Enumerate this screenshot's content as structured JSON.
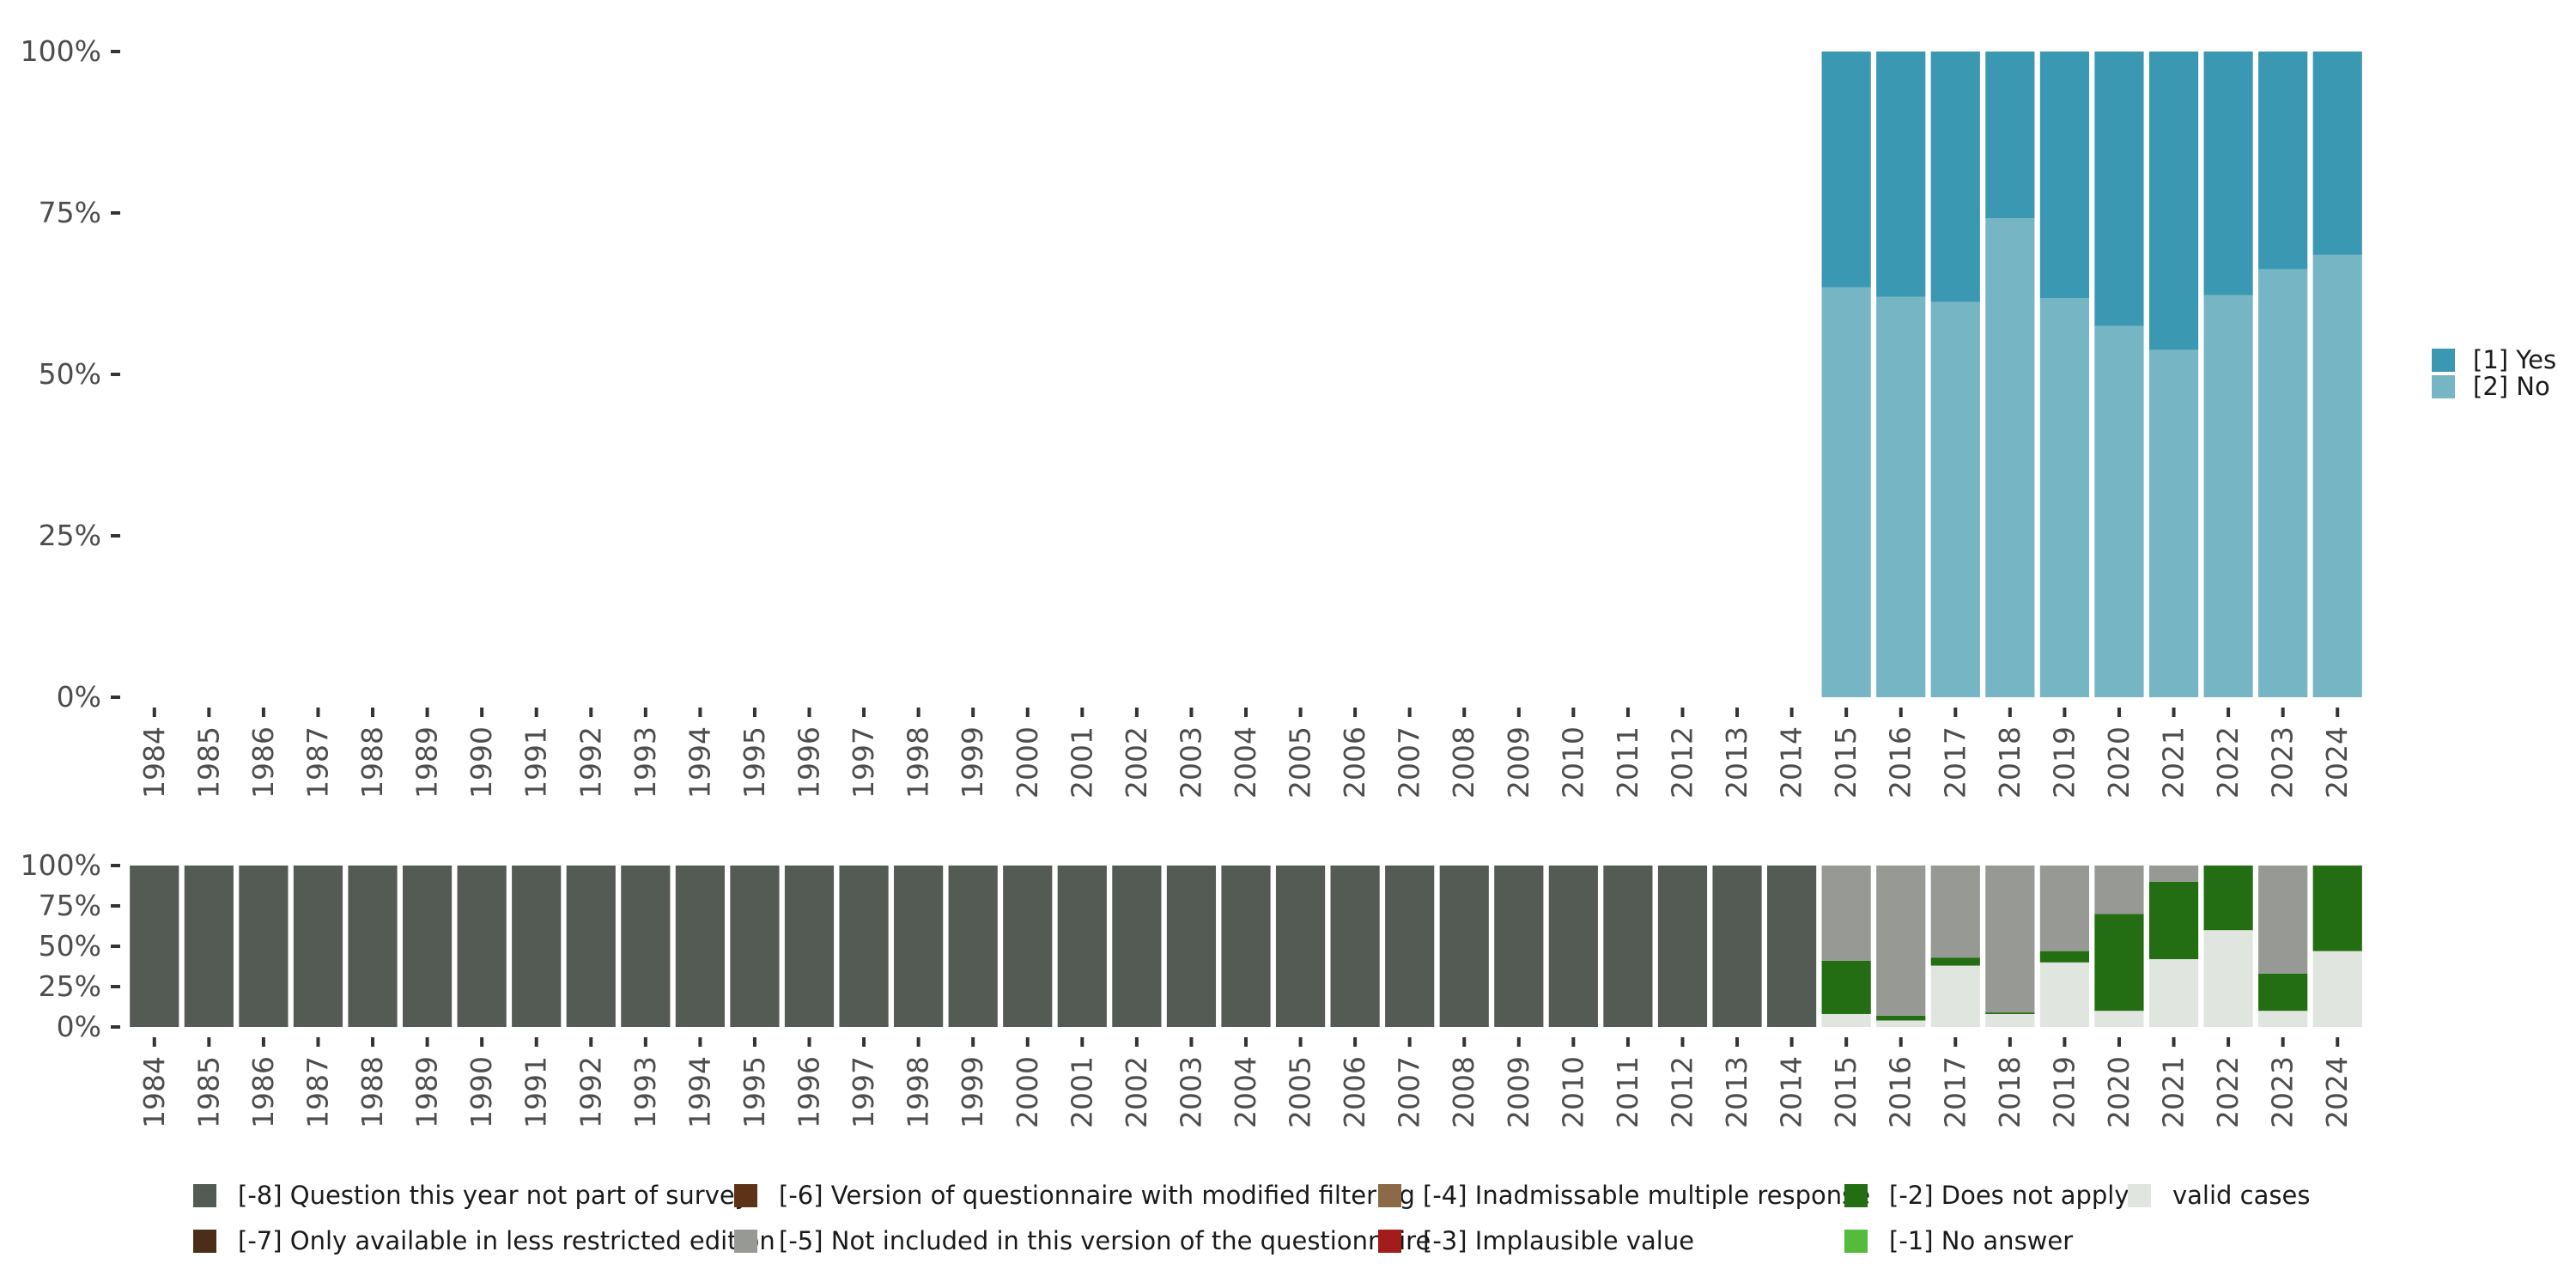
{
  "chart_data": [
    {
      "type": "bar",
      "stacked": true,
      "normalized": true,
      "categories": [
        "1984",
        "1985",
        "1986",
        "1987",
        "1988",
        "1989",
        "1990",
        "1991",
        "1992",
        "1993",
        "1994",
        "1995",
        "1996",
        "1997",
        "1998",
        "1999",
        "2000",
        "2001",
        "2002",
        "2003",
        "2004",
        "2005",
        "2006",
        "2007",
        "2008",
        "2009",
        "2010",
        "2011",
        "2012",
        "2013",
        "2014",
        "2015",
        "2016",
        "2017",
        "2018",
        "2019",
        "2020",
        "2021",
        "2022",
        "2023",
        "2024"
      ],
      "ylim": [
        0,
        100
      ],
      "y_ticks": [
        "0%",
        "25%",
        "50%",
        "75%",
        "100%"
      ],
      "legend_position": "right",
      "series": [
        {
          "name": "[2] No",
          "color": "#76b5c4",
          "values": [
            null,
            null,
            null,
            null,
            null,
            null,
            null,
            null,
            null,
            null,
            null,
            null,
            null,
            null,
            null,
            null,
            null,
            null,
            null,
            null,
            null,
            null,
            null,
            null,
            null,
            null,
            null,
            null,
            null,
            null,
            null,
            63.5,
            62,
            61.2,
            74.2,
            61.8,
            57.5,
            53.8,
            62.3,
            66.3,
            68.5
          ]
        },
        {
          "name": "[1] Yes",
          "color": "#3b98b2",
          "values": [
            null,
            null,
            null,
            null,
            null,
            null,
            null,
            null,
            null,
            null,
            null,
            null,
            null,
            null,
            null,
            null,
            null,
            null,
            null,
            null,
            null,
            null,
            null,
            null,
            null,
            null,
            null,
            null,
            null,
            null,
            null,
            36.5,
            38,
            38.8,
            25.8,
            38.2,
            42.5,
            46.2,
            37.7,
            33.7,
            31.5
          ]
        }
      ]
    },
    {
      "type": "bar",
      "stacked": true,
      "normalized": true,
      "categories": [
        "1984",
        "1985",
        "1986",
        "1987",
        "1988",
        "1989",
        "1990",
        "1991",
        "1992",
        "1993",
        "1994",
        "1995",
        "1996",
        "1997",
        "1998",
        "1999",
        "2000",
        "2001",
        "2002",
        "2003",
        "2004",
        "2005",
        "2006",
        "2007",
        "2008",
        "2009",
        "2010",
        "2011",
        "2012",
        "2013",
        "2014",
        "2015",
        "2016",
        "2017",
        "2018",
        "2019",
        "2020",
        "2021",
        "2022",
        "2023",
        "2024"
      ],
      "ylim": [
        0,
        100
      ],
      "y_ticks": [
        "0%",
        "25%",
        "50%",
        "75%",
        "100%"
      ],
      "legend_position": "bottom",
      "series": [
        {
          "name": "valid cases",
          "color": "#e1e5df",
          "values": [
            0,
            0,
            0,
            0,
            0,
            0,
            0,
            0,
            0,
            0,
            0,
            0,
            0,
            0,
            0,
            0,
            0,
            0,
            0,
            0,
            0,
            0,
            0,
            0,
            0,
            0,
            0,
            0,
            0,
            0,
            0,
            8,
            4,
            38,
            8,
            40,
            10,
            42,
            60,
            10,
            47
          ]
        },
        {
          "name": "[-1] No answer",
          "color": "#54bb3c",
          "values": [
            0,
            0,
            0,
            0,
            0,
            0,
            0,
            0,
            0,
            0,
            0,
            0,
            0,
            0,
            0,
            0,
            0,
            0,
            0,
            0,
            0,
            0,
            0,
            0,
            0,
            0,
            0,
            0,
            0,
            0,
            0,
            0,
            0,
            0,
            0,
            0,
            0,
            0,
            0,
            0,
            0
          ]
        },
        {
          "name": "[-2] Does not apply",
          "color": "#236d12",
          "values": [
            0,
            0,
            0,
            0,
            0,
            0,
            0,
            0,
            0,
            0,
            0,
            0,
            0,
            0,
            0,
            0,
            0,
            0,
            0,
            0,
            0,
            0,
            0,
            0,
            0,
            0,
            0,
            0,
            0,
            0,
            0,
            33,
            3,
            5,
            1,
            7,
            60,
            48,
            40,
            23,
            53
          ]
        },
        {
          "name": "[-3] Implausible value",
          "color": "#a31c1c",
          "values": [
            0,
            0,
            0,
            0,
            0,
            0,
            0,
            0,
            0,
            0,
            0,
            0,
            0,
            0,
            0,
            0,
            0,
            0,
            0,
            0,
            0,
            0,
            0,
            0,
            0,
            0,
            0,
            0,
            0,
            0,
            0,
            0,
            0,
            0,
            0,
            0,
            0,
            0,
            0,
            0,
            0
          ]
        },
        {
          "name": "[-4] Inadmissable multiple response",
          "color": "#8c6a48",
          "values": [
            0,
            0,
            0,
            0,
            0,
            0,
            0,
            0,
            0,
            0,
            0,
            0,
            0,
            0,
            0,
            0,
            0,
            0,
            0,
            0,
            0,
            0,
            0,
            0,
            0,
            0,
            0,
            0,
            0,
            0,
            0,
            0,
            0,
            0,
            0,
            0,
            0,
            0,
            0,
            0,
            0
          ]
        },
        {
          "name": "[-5] Not included in this version of the questionnaire",
          "color": "#979a94",
          "values": [
            0,
            0,
            0,
            0,
            0,
            0,
            0,
            0,
            0,
            0,
            0,
            0,
            0,
            0,
            0,
            0,
            0,
            0,
            0,
            0,
            0,
            0,
            0,
            0,
            0,
            0,
            0,
            0,
            0,
            0,
            0,
            59,
            93,
            57,
            91,
            53,
            30,
            10,
            0,
            67,
            0
          ]
        },
        {
          "name": "[-6] Version of questionnaire with modified filtering",
          "color": "#5c3316",
          "values": [
            0,
            0,
            0,
            0,
            0,
            0,
            0,
            0,
            0,
            0,
            0,
            0,
            0,
            0,
            0,
            0,
            0,
            0,
            0,
            0,
            0,
            0,
            0,
            0,
            0,
            0,
            0,
            0,
            0,
            0,
            0,
            0,
            0,
            0,
            0,
            0,
            0,
            0,
            0,
            0,
            0
          ]
        },
        {
          "name": "[-7] Only available in less restricted edition",
          "color": "#4b2d1a",
          "values": [
            0,
            0,
            0,
            0,
            0,
            0,
            0,
            0,
            0,
            0,
            0,
            0,
            0,
            0,
            0,
            0,
            0,
            0,
            0,
            0,
            0,
            0,
            0,
            0,
            0,
            0,
            0,
            0,
            0,
            0,
            0,
            0,
            0,
            0,
            0,
            0,
            0,
            0,
            0,
            0,
            0
          ]
        },
        {
          "name": "[-8] Question this year not part of survey",
          "color": "#545b55",
          "values": [
            100,
            100,
            100,
            100,
            100,
            100,
            100,
            100,
            100,
            100,
            100,
            100,
            100,
            100,
            100,
            100,
            100,
            100,
            100,
            100,
            100,
            100,
            100,
            100,
            100,
            100,
            100,
            100,
            100,
            100,
            100,
            0,
            0,
            0,
            0,
            0,
            0,
            0,
            0,
            0,
            0
          ]
        }
      ],
      "legend_order": [
        "[-8] Question this year not part of survey",
        "[-7] Only available in less restricted edition",
        "[-6] Version of questionnaire with modified filtering",
        "[-5] Not included in this version of the questionnaire",
        "[-4] Inadmissable multiple response",
        "[-3] Implausible value",
        "[-2] Does not apply",
        "[-1] No answer",
        "valid cases"
      ]
    }
  ]
}
